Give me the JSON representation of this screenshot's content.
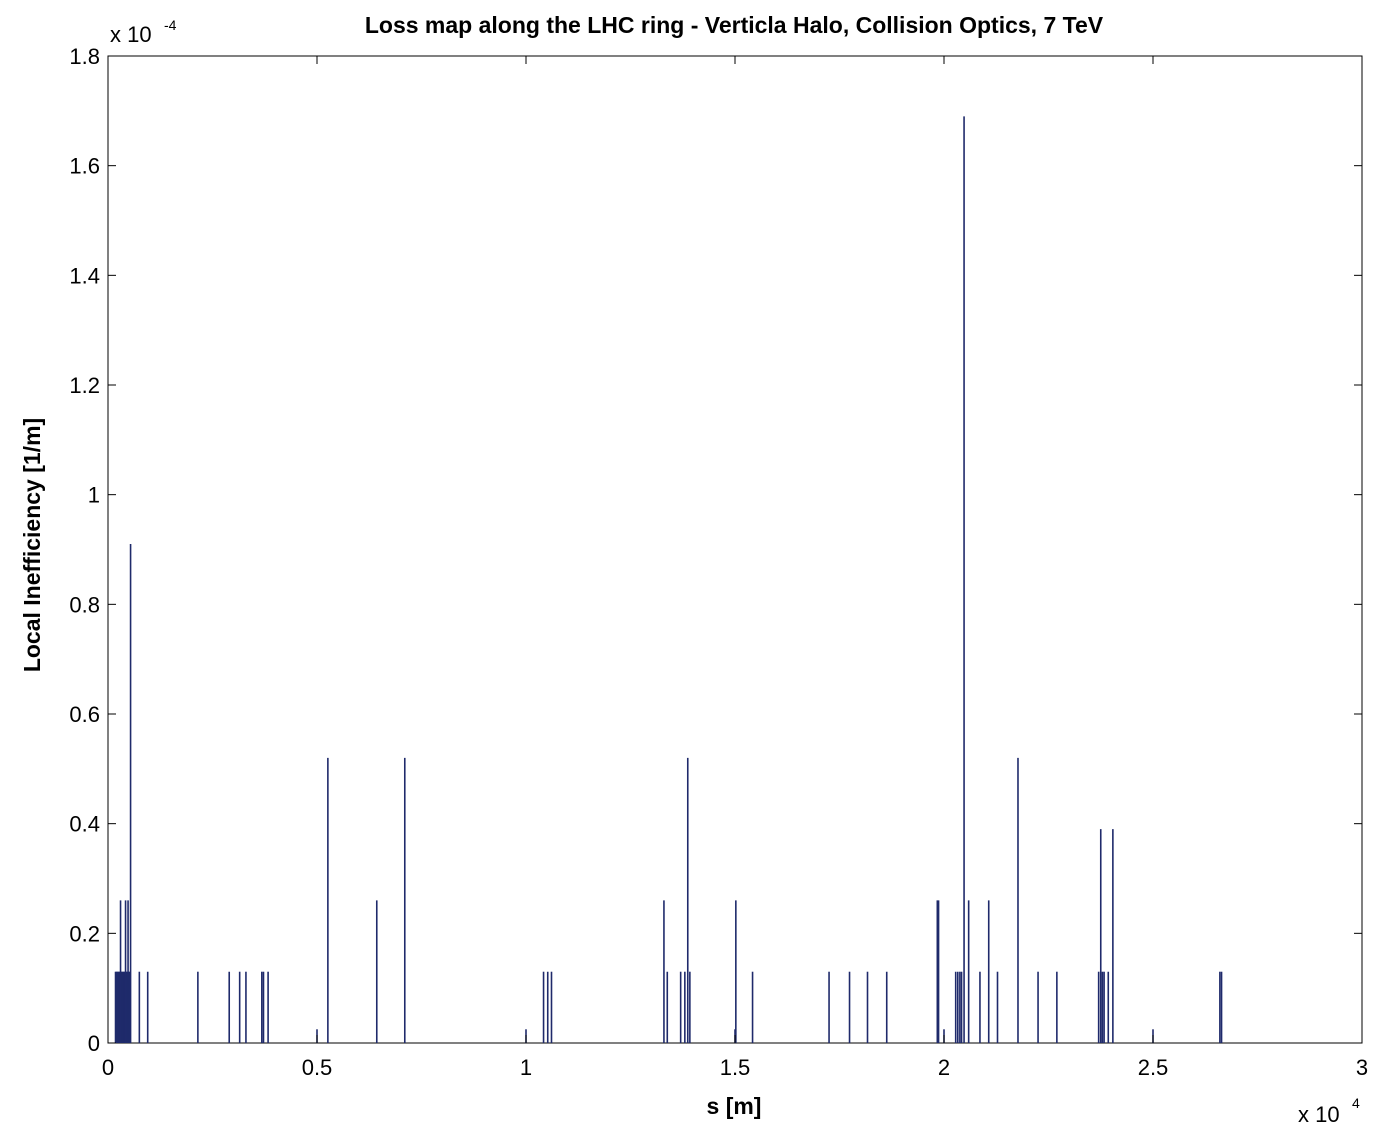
{
  "chart_data": {
    "type": "bar",
    "title": "Loss map along the LHC ring - Verticla Halo, Collision Optics, 7 TeV",
    "xlabel": "s [m]",
    "ylabel": "Local Inefficiency [1/m]",
    "xlim": [
      0,
      30000
    ],
    "ylim": [
      0,
      0.00018
    ],
    "x_ticks": [
      0,
      5000,
      10000,
      15000,
      20000,
      25000,
      30000
    ],
    "x_tick_labels": [
      "0",
      "0.5",
      "1",
      "1.5",
      "2",
      "2.5",
      "3"
    ],
    "y_ticks": [
      0,
      2e-05,
      4e-05,
      6e-05,
      8e-05,
      0.0001,
      0.00012,
      0.00014,
      0.00016,
      0.00018
    ],
    "y_tick_labels": [
      "0",
      "0.2",
      "0.4",
      "0.6",
      "0.8",
      "1",
      "1.2",
      "1.4",
      "1.6",
      "1.8"
    ],
    "x_multiplier": {
      "base": "x 10",
      "exp": "4"
    },
    "y_multiplier": {
      "base": "x 10",
      "exp": "-4"
    },
    "grid": false,
    "color": "#1f2a6b",
    "x": [
      180,
      200,
      220,
      240,
      260,
      280,
      300,
      320,
      340,
      360,
      380,
      400,
      420,
      440,
      460,
      480,
      500,
      520,
      300,
      420,
      480,
      540,
      750,
      950,
      2150,
      2900,
      3150,
      3300,
      3680,
      3720,
      3830,
      5000,
      5260,
      6430,
      7100,
      10000,
      10420,
      10520,
      10610,
      13300,
      13380,
      13700,
      13800,
      13870,
      13920,
      15000,
      15020,
      15420,
      17250,
      17740,
      18170,
      18630,
      19840,
      19870,
      20000,
      20280,
      20330,
      20380,
      20420,
      20480,
      20590,
      20860,
      21070,
      21280,
      21770,
      22250,
      22700,
      23700,
      23750,
      23790,
      23830,
      23930,
      24040,
      25000,
      26600,
      26640
    ],
    "values": [
      1.3e-05,
      1.3e-05,
      1.3e-05,
      1.3e-05,
      1.3e-05,
      1.3e-05,
      1.3e-05,
      1.3e-05,
      1.3e-05,
      1.3e-05,
      1.3e-05,
      1.3e-05,
      1.3e-05,
      1.3e-05,
      1.3e-05,
      1.3e-05,
      1.3e-05,
      1.3e-05,
      2.6e-05,
      2.6e-05,
      2.6e-05,
      9.1e-05,
      1.3e-05,
      1.3e-05,
      1.3e-05,
      1.3e-05,
      1.3e-05,
      1.3e-05,
      1.3e-05,
      1.3e-05,
      1.3e-05,
      2.5e-06,
      5.2e-05,
      2.6e-05,
      5.2e-05,
      2.5e-06,
      1.3e-05,
      1.3e-05,
      1.3e-05,
      2.6e-05,
      1.3e-05,
      1.3e-05,
      1.3e-05,
      5.2e-05,
      1.3e-05,
      2.5e-06,
      2.6e-05,
      1.3e-05,
      1.3e-05,
      1.3e-05,
      1.3e-05,
      1.3e-05,
      2.6e-05,
      2.6e-05,
      2.5e-06,
      1.3e-05,
      1.3e-05,
      1.3e-05,
      1.3e-05,
      0.000169,
      2.6e-05,
      1.3e-05,
      2.6e-05,
      1.3e-05,
      5.2e-05,
      1.3e-05,
      1.3e-05,
      1.3e-05,
      3.9e-05,
      1.3e-05,
      1.3e-05,
      1.3e-05,
      3.9e-05,
      2.5e-06,
      1.3e-05,
      1.3e-05
    ]
  }
}
